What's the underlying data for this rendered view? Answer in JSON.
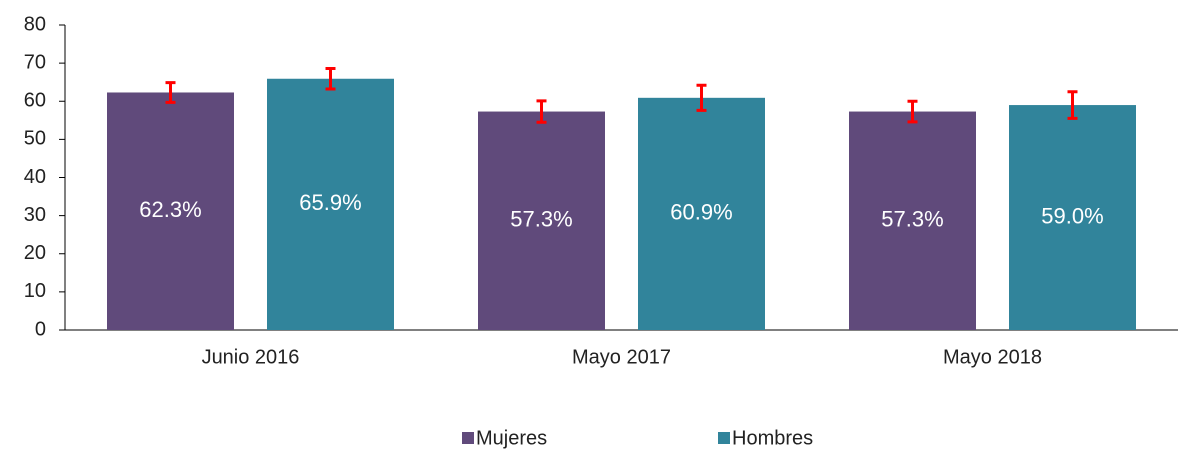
{
  "chart_data": {
    "type": "bar",
    "categories": [
      "Junio 2016",
      "Mayo 2017",
      "Mayo 2018"
    ],
    "series": [
      {
        "name": "Mujeres",
        "color": "#604a7b",
        "values": [
          62.3,
          57.3,
          57.3
        ],
        "value_labels": [
          "62.3%",
          "57.3%",
          "57.3%"
        ],
        "errors": [
          2.6,
          2.8,
          2.7
        ]
      },
      {
        "name": "Hombres",
        "color": "#31849b",
        "values": [
          65.9,
          60.9,
          59.0
        ],
        "value_labels": [
          "65.9%",
          "60.9%",
          "59.0%"
        ],
        "errors": [
          2.7,
          3.3,
          3.5
        ]
      }
    ],
    "error_color": "#ff0000",
    "ylim": [
      0,
      80
    ],
    "yticks": [
      0,
      10,
      20,
      30,
      40,
      50,
      60,
      70,
      80
    ],
    "legend": "bottom"
  }
}
